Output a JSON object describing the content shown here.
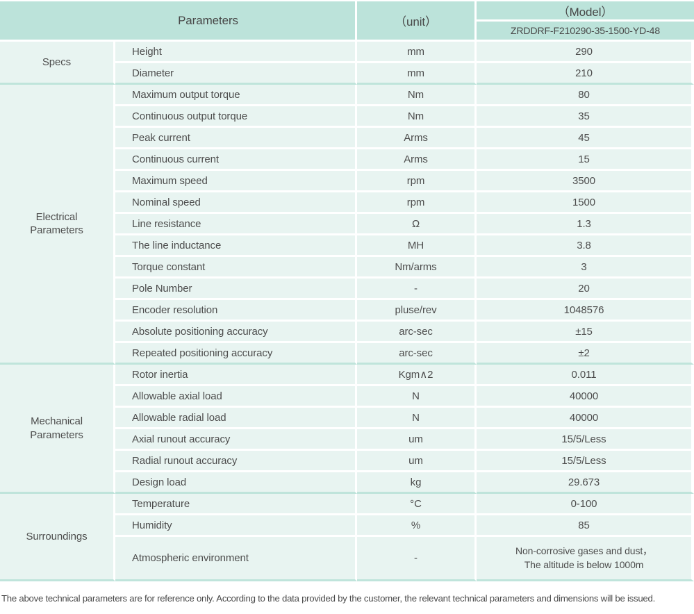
{
  "header": {
    "parameters_label": "Parameters",
    "unit_label": "（unit）",
    "model_label": "（Model）",
    "model_number": "ZRDDRF-F210290-35-1500-YD-48"
  },
  "colors": {
    "header_bg": "#bce3da",
    "cell_bg": "#e8f4f1",
    "divider": "#bfe4db",
    "text": "#4d4d4d"
  },
  "sections": [
    {
      "id": "specs",
      "label": "Specs",
      "rows": [
        {
          "param": "Height",
          "unit": "mm",
          "value": "290"
        },
        {
          "param": "Diameter",
          "unit": "mm",
          "value": "210"
        }
      ]
    },
    {
      "id": "electrical-parameters",
      "label": "Electrical\nParameters",
      "rows": [
        {
          "param": "Maximum output torque",
          "unit": "Nm",
          "value": "80"
        },
        {
          "param": "Continuous output torque",
          "unit": "Nm",
          "value": "35"
        },
        {
          "param": "Peak current",
          "unit": "Arms",
          "value": "45"
        },
        {
          "param": "Continuous current",
          "unit": "Arms",
          "value": "15"
        },
        {
          "param": "Maximum speed",
          "unit": "rpm",
          "value": "3500"
        },
        {
          "param": "Nominal speed",
          "unit": "rpm",
          "value": "1500"
        },
        {
          "param": "Line resistance",
          "unit": "Ω",
          "value": "1.3"
        },
        {
          "param": "The line inductance",
          "unit": "MH",
          "value": "3.8"
        },
        {
          "param": "Torque constant",
          "unit": "Nm/arms",
          "value": "3"
        },
        {
          "param": "Pole Number",
          "unit": "-",
          "value": "20"
        },
        {
          "param": "Encoder resolution",
          "unit": "pluse/rev",
          "value": "1048576"
        },
        {
          "param": "Absolute positioning accuracy",
          "unit": "arc-sec",
          "value": "±15"
        },
        {
          "param": "Repeated positioning accuracy",
          "unit": "arc-sec",
          "value": "±2"
        }
      ]
    },
    {
      "id": "mechanical-parameters",
      "label": "Mechanical\nParameters",
      "rows": [
        {
          "param": "Rotor inertia",
          "unit": "Kgm∧2",
          "value": "0.011"
        },
        {
          "param": "Allowable axial load",
          "unit": "N",
          "value": "40000"
        },
        {
          "param": "Allowable radial load",
          "unit": "N",
          "value": "40000"
        },
        {
          "param": "Axial runout accuracy",
          "unit": "um",
          "value": "15/5/Less"
        },
        {
          "param": "Radial runout accuracy",
          "unit": "um",
          "value": "15/5/Less"
        },
        {
          "param": "Design load",
          "unit": "kg",
          "value": "29.673"
        }
      ]
    },
    {
      "id": "surroundings",
      "label": "Surroundings",
      "rows": [
        {
          "param": "Temperature",
          "unit": "°C",
          "value": "0-100"
        },
        {
          "param": "Humidity",
          "unit": "%",
          "value": "85"
        },
        {
          "param": "Atmospheric environment",
          "unit": "-",
          "value": "Non-corrosive gases and dust，\nThe altitude is below 1000m",
          "tall": true
        }
      ]
    }
  ],
  "footer": {
    "note": "The above technical parameters are for reference only. According to the data provided by the customer, the relevant technical parameters and dimensions will be issued."
  }
}
